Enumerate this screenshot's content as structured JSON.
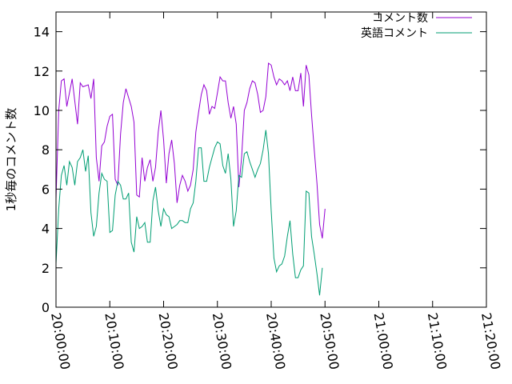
{
  "chart_data": {
    "type": "line",
    "title": "",
    "xlabel": "",
    "ylabel": "1秒毎のコメント数",
    "xlim": [
      0,
      80
    ],
    "ylim": [
      0,
      15
    ],
    "y_ticks": [
      0,
      2,
      4,
      6,
      8,
      10,
      12,
      14
    ],
    "x_ticks": [
      {
        "value": 0,
        "label": "20:00:00"
      },
      {
        "value": 10,
        "label": "20:10:00"
      },
      {
        "value": 20,
        "label": "20:20:00"
      },
      {
        "value": 30,
        "label": "20:30:00"
      },
      {
        "value": 40,
        "label": "20:40:00"
      },
      {
        "value": 50,
        "label": "20:50:00"
      },
      {
        "value": 60,
        "label": "21:00:00"
      },
      {
        "value": 70,
        "label": "21:10:00"
      },
      {
        "value": 80,
        "label": "21:20:00"
      }
    ],
    "x_unit": "minutes after 20:00:00",
    "grid": false,
    "legend_position": "top-right",
    "series": [
      {
        "name": "コメント数",
        "color": "#9400d3",
        "points": [
          [
            0,
            5.5
          ],
          [
            0.5,
            10.0
          ],
          [
            1,
            11.5
          ],
          [
            1.5,
            11.6
          ],
          [
            2,
            10.2
          ],
          [
            3,
            11.6
          ],
          [
            4,
            9.3
          ],
          [
            4.5,
            11.4
          ],
          [
            5,
            11.2
          ],
          [
            6,
            11.3
          ],
          [
            6.5,
            10.6
          ],
          [
            7,
            11.6
          ],
          [
            7.5,
            7.6
          ],
          [
            8,
            6.4
          ],
          [
            8.5,
            8.2
          ],
          [
            9,
            8.4
          ],
          [
            9.5,
            9.2
          ],
          [
            10,
            9.7
          ],
          [
            10.5,
            9.8
          ],
          [
            11,
            6.5
          ],
          [
            11.5,
            6.2
          ],
          [
            12,
            8.8
          ],
          [
            12.5,
            10.4
          ],
          [
            13,
            11.1
          ],
          [
            14,
            10.2
          ],
          [
            14.5,
            9.4
          ],
          [
            15,
            5.7
          ],
          [
            15.5,
            5.6
          ],
          [
            16,
            7.6
          ],
          [
            16.5,
            6.4
          ],
          [
            17,
            7.1
          ],
          [
            17.5,
            7.5
          ],
          [
            18,
            6.4
          ],
          [
            18.5,
            7.1
          ],
          [
            19,
            8.9
          ],
          [
            19.5,
            10.0
          ],
          [
            20,
            8.5
          ],
          [
            20.5,
            6.3
          ],
          [
            21,
            7.8
          ],
          [
            21.5,
            8.5
          ],
          [
            22,
            7.3
          ],
          [
            22.5,
            5.3
          ],
          [
            23,
            6.2
          ],
          [
            23.5,
            6.7
          ],
          [
            24,
            6.4
          ],
          [
            24.5,
            5.9
          ],
          [
            25,
            6.2
          ],
          [
            25.5,
            7.0
          ],
          [
            26,
            8.9
          ],
          [
            26.5,
            9.9
          ],
          [
            27,
            10.8
          ],
          [
            27.5,
            11.3
          ],
          [
            28,
            11.0
          ],
          [
            28.5,
            9.8
          ],
          [
            29,
            10.2
          ],
          [
            29.5,
            10.1
          ],
          [
            30,
            10.9
          ],
          [
            30.5,
            11.7
          ],
          [
            31,
            11.5
          ],
          [
            31.5,
            11.5
          ],
          [
            32,
            10.4
          ],
          [
            32.5,
            9.6
          ],
          [
            33,
            10.2
          ],
          [
            33.5,
            9.3
          ],
          [
            34,
            6.1
          ],
          [
            34.5,
            7.6
          ],
          [
            35,
            10.0
          ],
          [
            35.5,
            10.4
          ],
          [
            36,
            11.1
          ],
          [
            36.5,
            11.5
          ],
          [
            37,
            11.4
          ],
          [
            37.5,
            10.8
          ],
          [
            38,
            9.9
          ],
          [
            38.5,
            10.0
          ],
          [
            39,
            10.7
          ],
          [
            39.5,
            12.4
          ],
          [
            40,
            12.3
          ],
          [
            40.5,
            11.7
          ],
          [
            41,
            11.3
          ],
          [
            41.5,
            11.6
          ],
          [
            42,
            11.5
          ],
          [
            42.5,
            11.3
          ],
          [
            43,
            11.5
          ],
          [
            43.5,
            11.0
          ],
          [
            44,
            11.7
          ],
          [
            44.5,
            11.0
          ],
          [
            45,
            11.0
          ],
          [
            45.5,
            11.9
          ],
          [
            46,
            10.2
          ],
          [
            46.5,
            12.3
          ],
          [
            47,
            11.8
          ],
          [
            47.5,
            9.8
          ],
          [
            48,
            8.0
          ],
          [
            48.5,
            6.3
          ],
          [
            49,
            4.2
          ],
          [
            49.5,
            3.5
          ],
          [
            50,
            5.0
          ]
        ]
      },
      {
        "name": "英語コメント",
        "color": "#009e73",
        "points": [
          [
            0,
            2.2
          ],
          [
            0.5,
            5.0
          ],
          [
            1,
            6.7
          ],
          [
            1.5,
            7.2
          ],
          [
            2,
            6.2
          ],
          [
            2.5,
            7.4
          ],
          [
            3,
            7.1
          ],
          [
            3.5,
            6.2
          ],
          [
            4,
            7.4
          ],
          [
            4.5,
            7.6
          ],
          [
            5,
            8.0
          ],
          [
            5.5,
            6.9
          ],
          [
            6,
            7.7
          ],
          [
            6.5,
            4.8
          ],
          [
            7,
            3.6
          ],
          [
            7.5,
            4.1
          ],
          [
            8,
            5.8
          ],
          [
            8.5,
            6.8
          ],
          [
            9,
            6.5
          ],
          [
            9.5,
            6.4
          ],
          [
            10,
            3.8
          ],
          [
            10.5,
            3.9
          ],
          [
            11,
            5.7
          ],
          [
            11.5,
            6.4
          ],
          [
            12,
            6.2
          ],
          [
            12.5,
            5.5
          ],
          [
            13,
            5.5
          ],
          [
            13.5,
            5.8
          ],
          [
            14,
            3.3
          ],
          [
            14.5,
            2.8
          ],
          [
            15,
            4.6
          ],
          [
            15.5,
            4.0
          ],
          [
            16,
            4.1
          ],
          [
            16.5,
            4.3
          ],
          [
            17,
            3.3
          ],
          [
            17.5,
            3.3
          ],
          [
            18,
            5.4
          ],
          [
            18.5,
            6.1
          ],
          [
            19,
            4.9
          ],
          [
            19.5,
            4.1
          ],
          [
            20,
            5.0
          ],
          [
            20.5,
            4.7
          ],
          [
            21,
            4.6
          ],
          [
            21.5,
            4.0
          ],
          [
            22,
            4.1
          ],
          [
            22.5,
            4.2
          ],
          [
            23,
            4.4
          ],
          [
            23.5,
            4.4
          ],
          [
            24,
            4.3
          ],
          [
            24.5,
            4.3
          ],
          [
            25,
            5.0
          ],
          [
            25.5,
            5.3
          ],
          [
            26,
            6.4
          ],
          [
            26.5,
            8.1
          ],
          [
            27,
            8.1
          ],
          [
            27.5,
            6.4
          ],
          [
            28,
            6.4
          ],
          [
            28.5,
            7.1
          ],
          [
            29,
            7.6
          ],
          [
            29.5,
            8.1
          ],
          [
            30,
            8.4
          ],
          [
            30.5,
            8.3
          ],
          [
            31,
            7.2
          ],
          [
            31.5,
            6.8
          ],
          [
            32,
            7.8
          ],
          [
            32.5,
            6.5
          ],
          [
            33,
            4.1
          ],
          [
            33.5,
            4.9
          ],
          [
            34,
            6.7
          ],
          [
            34.5,
            6.6
          ],
          [
            35,
            7.8
          ],
          [
            35.5,
            7.9
          ],
          [
            36,
            7.4
          ],
          [
            36.5,
            7.0
          ],
          [
            37,
            6.6
          ],
          [
            37.5,
            7.0
          ],
          [
            38,
            7.3
          ],
          [
            38.5,
            8.0
          ],
          [
            39,
            9.0
          ],
          [
            39.5,
            7.8
          ],
          [
            40,
            4.9
          ],
          [
            40.5,
            2.5
          ],
          [
            41,
            1.8
          ],
          [
            41.5,
            2.1
          ],
          [
            42,
            2.2
          ],
          [
            42.5,
            2.6
          ],
          [
            43,
            3.6
          ],
          [
            43.5,
            4.4
          ],
          [
            44,
            2.7
          ],
          [
            44.5,
            1.5
          ],
          [
            45,
            1.5
          ],
          [
            45.5,
            1.9
          ],
          [
            46,
            2.1
          ],
          [
            46.5,
            5.9
          ],
          [
            47,
            5.8
          ],
          [
            47.5,
            3.6
          ],
          [
            48,
            2.7
          ],
          [
            48.5,
            1.7
          ],
          [
            49,
            0.6
          ],
          [
            49.5,
            2.0
          ]
        ]
      }
    ]
  }
}
